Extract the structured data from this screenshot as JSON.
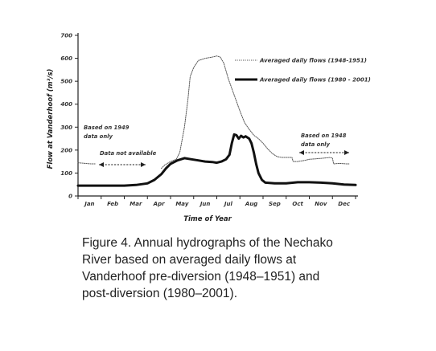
{
  "chart_data": {
    "type": "line",
    "title": "",
    "xlabel": "Time of Year",
    "ylabel": "Flow at Vanderhoof (m³/s)",
    "ylim": [
      0,
      700
    ],
    "yticks": [
      0,
      100,
      200,
      300,
      400,
      500,
      600,
      700
    ],
    "xlim": [
      0,
      12
    ],
    "month_labels": [
      "Jan",
      "Feb",
      "Mar",
      "Apr",
      "May",
      "Jun",
      "Jul",
      "Aug",
      "Sep",
      "Oct",
      "Nov",
      "Dec"
    ],
    "grid": false,
    "legend_position": "top-right",
    "series": [
      {
        "name": "Averaged daily flows (1948-1951)",
        "style": "dotted",
        "color": "#555555",
        "segments": [
          [
            [
              0.0,
              145
            ],
            [
              0.3,
              142
            ],
            [
              0.55,
              140
            ],
            [
              0.75,
              140
            ]
          ],
          [
            [
              3.6,
              120
            ],
            [
              3.75,
              135
            ],
            [
              4.0,
              150
            ],
            [
              4.25,
              160
            ],
            [
              4.4,
              190
            ],
            [
              4.6,
              300
            ],
            [
              4.75,
              420
            ],
            [
              4.85,
              520
            ],
            [
              5.0,
              560
            ],
            [
              5.2,
              590
            ],
            [
              5.5,
              600
            ],
            [
              5.8,
              605
            ],
            [
              6.0,
              610
            ],
            [
              6.15,
              605
            ],
            [
              6.3,
              580
            ],
            [
              6.5,
              510
            ],
            [
              6.75,
              440
            ],
            [
              7.0,
              370
            ],
            [
              7.2,
              320
            ],
            [
              7.4,
              290
            ],
            [
              7.6,
              265
            ],
            [
              7.8,
              250
            ],
            [
              8.0,
              230
            ],
            [
              8.2,
              205
            ],
            [
              8.4,
              185
            ],
            [
              8.6,
              172
            ],
            [
              8.8,
              168
            ],
            [
              9.0,
              168
            ],
            [
              9.25,
              168
            ],
            [
              9.3,
              150
            ],
            [
              9.5,
              150
            ],
            [
              9.8,
              155
            ],
            [
              10.0,
              160
            ],
            [
              10.3,
              162
            ],
            [
              10.6,
              165
            ],
            [
              10.9,
              168
            ],
            [
              11.0,
              165
            ],
            [
              11.05,
              140
            ],
            [
              11.3,
              142
            ],
            [
              11.6,
              140
            ],
            [
              11.75,
              140
            ]
          ]
        ]
      },
      {
        "name": "Averaged daily flows (1980 - 2001)",
        "style": "solid-thick",
        "color": "#111111",
        "segments": [
          [
            [
              0.0,
              45
            ],
            [
              0.5,
              45
            ],
            [
              1.0,
              45
            ],
            [
              1.5,
              45
            ],
            [
              2.0,
              45
            ],
            [
              2.5,
              48
            ],
            [
              3.0,
              55
            ],
            [
              3.3,
              70
            ],
            [
              3.6,
              95
            ],
            [
              3.8,
              120
            ],
            [
              4.0,
              140
            ],
            [
              4.3,
              155
            ],
            [
              4.6,
              165
            ],
            [
              4.9,
              160
            ],
            [
              5.2,
              155
            ],
            [
              5.5,
              150
            ],
            [
              5.8,
              148
            ],
            [
              6.0,
              145
            ],
            [
              6.2,
              150
            ],
            [
              6.4,
              160
            ],
            [
              6.55,
              180
            ],
            [
              6.65,
              230
            ],
            [
              6.75,
              268
            ],
            [
              6.85,
              265
            ],
            [
              6.95,
              250
            ],
            [
              7.05,
              262
            ],
            [
              7.15,
              255
            ],
            [
              7.25,
              260
            ],
            [
              7.4,
              250
            ],
            [
              7.5,
              230
            ],
            [
              7.6,
              190
            ],
            [
              7.7,
              140
            ],
            [
              7.8,
              100
            ],
            [
              7.95,
              70
            ],
            [
              8.1,
              58
            ],
            [
              8.5,
              55
            ],
            [
              9.0,
              55
            ],
            [
              9.5,
              60
            ],
            [
              10.0,
              60
            ],
            [
              10.5,
              58
            ],
            [
              11.0,
              55
            ],
            [
              11.5,
              50
            ],
            [
              12.0,
              48
            ]
          ]
        ]
      }
    ],
    "annotations": [
      {
        "text_lines": [
          "Based on 1949",
          "data only"
        ]
      },
      {
        "text_lines": [
          "Data not available"
        ]
      },
      {
        "text_lines": [
          "Based on 1948",
          "data only"
        ]
      }
    ]
  },
  "caption": "Figure 4. Annual hydrographs of the Nechako River based on averaged daily flows at Vanderhoof pre-diversion (1948–1951) and post-diversion (1980–2001)."
}
